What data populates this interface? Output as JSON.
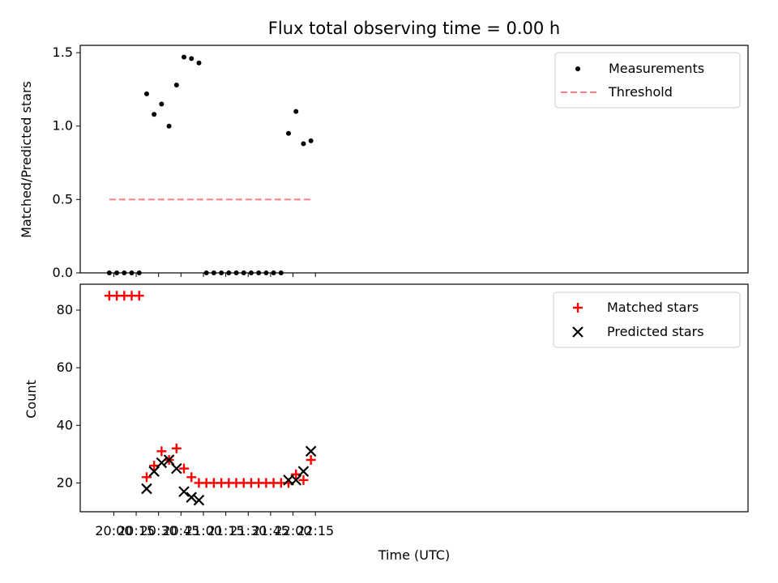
{
  "chart_data": [
    {
      "type": "scatter",
      "title": "Flux total observing time = 0.00 h",
      "xlabel": "",
      "ylabel": "Matched/Predicted stars",
      "ylim": [
        0,
        1.55
      ],
      "yticks": [
        "0.0",
        "0.5",
        "1.0",
        "1.5"
      ],
      "grid": false,
      "legend_position": "top-right",
      "series": [
        {
          "name": "Measurements",
          "marker": "dot",
          "color": "#000000",
          "x": [
            "19:57",
            "20:02",
            "20:07",
            "20:12",
            "20:17",
            "20:22",
            "20:27",
            "20:32",
            "20:37",
            "20:42",
            "20:47",
            "20:52",
            "20:57",
            "21:02",
            "21:07",
            "21:12",
            "21:17",
            "21:22",
            "21:27",
            "21:32",
            "21:37",
            "21:42",
            "21:47",
            "21:52",
            "21:57",
            "22:02",
            "22:07",
            "22:12"
          ],
          "values": [
            0,
            0,
            0,
            0,
            0,
            1.22,
            1.08,
            1.15,
            1.0,
            1.28,
            1.47,
            1.46,
            1.43,
            0,
            0,
            0,
            0,
            0,
            0,
            0,
            0,
            0,
            0,
            0,
            0.95,
            1.1,
            0.88,
            0.9
          ]
        },
        {
          "name": "Threshold",
          "style": "dashed",
          "color": "#ff7f7f",
          "x": [
            "19:57",
            "22:12"
          ],
          "values": [
            0.5,
            0.5
          ]
        }
      ]
    },
    {
      "type": "scatter",
      "xlabel": "Time (UTC)",
      "ylabel": "Count",
      "ylim": [
        10,
        89
      ],
      "yticks": [
        "20",
        "40",
        "60",
        "80"
      ],
      "xticks": [
        "20:00",
        "20:15",
        "20:30",
        "20:45",
        "21:00",
        "21:15",
        "21:30",
        "21:45",
        "22:00",
        "22:15"
      ],
      "grid": false,
      "legend_position": "top-right",
      "series": [
        {
          "name": "Matched stars",
          "marker": "plus",
          "color": "#ff0000",
          "x": [
            "19:57",
            "20:02",
            "20:07",
            "20:12",
            "20:17",
            "20:22",
            "20:27",
            "20:32",
            "20:37",
            "20:42",
            "20:47",
            "20:52",
            "20:57",
            "21:02",
            "21:07",
            "21:12",
            "21:17",
            "21:22",
            "21:27",
            "21:32",
            "21:37",
            "21:42",
            "21:47",
            "21:52",
            "21:57",
            "22:02",
            "22:07",
            "22:12"
          ],
          "values": [
            85,
            85,
            85,
            85,
            85,
            22,
            26,
            31,
            28,
            32,
            25,
            22,
            20,
            20,
            20,
            20,
            20,
            20,
            20,
            20,
            20,
            20,
            20,
            20,
            20,
            23,
            21,
            28
          ]
        },
        {
          "name": "Predicted stars",
          "marker": "x",
          "color": "#000000",
          "x": [
            "20:22",
            "20:27",
            "20:32",
            "20:37",
            "20:42",
            "20:47",
            "20:52",
            "20:57",
            "21:57",
            "22:02",
            "22:07",
            "22:12"
          ],
          "values": [
            18,
            24,
            27,
            28,
            25,
            17,
            15,
            14,
            21,
            21,
            24,
            31
          ]
        }
      ]
    }
  ]
}
